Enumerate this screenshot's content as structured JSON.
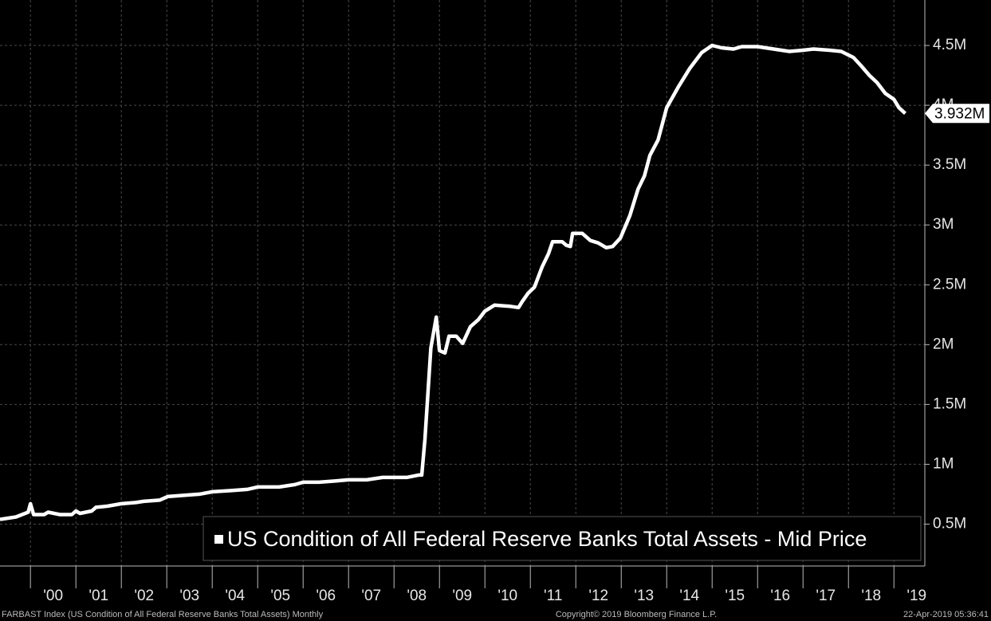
{
  "chart_data": {
    "type": "line",
    "legend_label": "US Condition of All Federal Reserve Banks Total Assets - Mid Price",
    "footer_left": "FARBAST Index (US Condition of All Federal Reserve Banks Total Assets)  Monthly",
    "footer_center": "Copyright© 2019 Bloomberg Finance L.P.",
    "footer_right": "22-Apr-2019 05:36:41",
    "last_value": {
      "value": 3.932,
      "label": "3.932M"
    },
    "grid": true,
    "xlim": [
      1999.33,
      2019.68
    ],
    "xticks": [
      {
        "value": 2000,
        "label": "'00"
      },
      {
        "value": 2001,
        "label": "'01"
      },
      {
        "value": 2002,
        "label": "'02"
      },
      {
        "value": 2003,
        "label": "'03"
      },
      {
        "value": 2004,
        "label": "'04"
      },
      {
        "value": 2005,
        "label": "'05"
      },
      {
        "value": 2006,
        "label": "'06"
      },
      {
        "value": 2007,
        "label": "'07"
      },
      {
        "value": 2008,
        "label": "'08"
      },
      {
        "value": 2009,
        "label": "'09"
      },
      {
        "value": 2010,
        "label": "'10"
      },
      {
        "value": 2011,
        "label": "'11"
      },
      {
        "value": 2012,
        "label": "'12"
      },
      {
        "value": 2013,
        "label": "'13"
      },
      {
        "value": 2014,
        "label": "'14"
      },
      {
        "value": 2015,
        "label": "'15"
      },
      {
        "value": 2016,
        "label": "'16"
      },
      {
        "value": 2017,
        "label": "'17"
      },
      {
        "value": 2018,
        "label": "'18"
      },
      {
        "value": 2019,
        "label": "'19"
      }
    ],
    "ylim": [
      0.15,
      4.88
    ],
    "yticks": [
      {
        "value": 0.5,
        "label": "0.5M"
      },
      {
        "value": 1,
        "label": "1M"
      },
      {
        "value": 1.5,
        "label": "1.5M"
      },
      {
        "value": 2,
        "label": "2M"
      },
      {
        "value": 2.5,
        "label": "2.5M"
      },
      {
        "value": 3,
        "label": "3M"
      },
      {
        "value": 3.5,
        "label": "3.5M"
      },
      {
        "value": 4,
        "label": "4M"
      },
      {
        "value": 4.5,
        "label": "4.5M"
      }
    ],
    "x": [
      1999.33,
      1999.68,
      1999.95,
      2000.0,
      2000.07,
      2000.3,
      2000.39,
      2000.65,
      2000.91,
      2001.0,
      2001.09,
      2001.35,
      2001.44,
      2001.7,
      2002.0,
      2002.32,
      2002.49,
      2002.84,
      2003.02,
      2003.37,
      2003.72,
      2004.0,
      2004.42,
      2004.77,
      2005.0,
      2005.47,
      2005.82,
      2006.0,
      2006.35,
      2006.7,
      2007.0,
      2007.4,
      2007.75,
      2008.0,
      2008.28,
      2008.54,
      2008.61,
      2008.68,
      2008.81,
      2008.93,
      2009.0,
      2009.12,
      2009.21,
      2009.37,
      2009.51,
      2009.68,
      2009.86,
      2010.0,
      2010.21,
      2010.56,
      2010.74,
      2010.82,
      2010.95,
      2011.09,
      2011.26,
      2011.4,
      2011.49,
      2011.7,
      2011.79,
      2011.88,
      2011.93,
      2012.14,
      2012.32,
      2012.49,
      2012.67,
      2012.81,
      2012.98,
      2013.19,
      2013.37,
      2013.51,
      2013.63,
      2013.81,
      2014.0,
      2014.25,
      2014.51,
      2014.77,
      2015.0,
      2015.21,
      2015.47,
      2015.65,
      2016.0,
      2016.35,
      2016.7,
      2017.0,
      2017.23,
      2017.58,
      2017.84,
      2018.11,
      2018.28,
      2018.46,
      2018.63,
      2018.81,
      2019.0,
      2019.11,
      2019.25
    ],
    "series": [
      {
        "name": "US Condition of All Federal Reserve Banks Total Assets - Mid Price",
        "color": "#ffffff",
        "values": [
          0.54,
          0.56,
          0.6,
          0.67,
          0.58,
          0.58,
          0.6,
          0.58,
          0.58,
          0.61,
          0.59,
          0.61,
          0.64,
          0.65,
          0.67,
          0.68,
          0.69,
          0.7,
          0.73,
          0.74,
          0.75,
          0.77,
          0.78,
          0.79,
          0.81,
          0.81,
          0.83,
          0.85,
          0.85,
          0.86,
          0.87,
          0.87,
          0.89,
          0.89,
          0.89,
          0.91,
          0.91,
          1.21,
          1.97,
          2.23,
          1.95,
          1.93,
          2.07,
          2.07,
          2.01,
          2.15,
          2.21,
          2.28,
          2.33,
          2.32,
          2.31,
          2.36,
          2.43,
          2.48,
          2.65,
          2.76,
          2.86,
          2.86,
          2.83,
          2.82,
          2.93,
          2.93,
          2.87,
          2.85,
          2.81,
          2.82,
          2.89,
          3.08,
          3.3,
          3.41,
          3.58,
          3.71,
          3.98,
          4.15,
          4.31,
          4.44,
          4.5,
          4.48,
          4.47,
          4.49,
          4.49,
          4.47,
          4.45,
          4.46,
          4.47,
          4.46,
          4.45,
          4.4,
          4.33,
          4.25,
          4.19,
          4.1,
          4.05,
          3.98,
          3.932
        ]
      }
    ]
  }
}
